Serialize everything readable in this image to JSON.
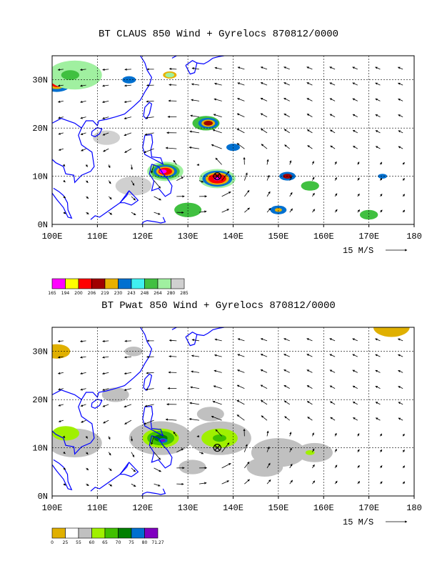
{
  "panels": [
    {
      "title": "BT CLAUS 850 Wind + Gyrelocs 870812/0000",
      "field": "CLAUS brightness temperature",
      "x_ticks": [
        "100E",
        "110E",
        "120E",
        "130E",
        "140E",
        "150E",
        "160E",
        "170E",
        "180"
      ],
      "y_ticks": [
        "30N",
        "20N",
        "10N",
        "0N"
      ],
      "vector_ref": "15 M/S",
      "legend": [
        "165",
        "194",
        "200",
        "206",
        "219",
        "230",
        "243",
        "248",
        "264",
        "280",
        "285"
      ],
      "legend_colors": [
        "#ff00ff",
        "#ffff00",
        "#ff0000",
        "#a00000",
        "#e8b000",
        "#0070d0",
        "#40f0f0",
        "#40c040",
        "#a0f0a0",
        "#d0d0d0"
      ]
    },
    {
      "title": "BT Pwat 850 Wind + Gyrelocs 870812/0000",
      "field": "Precipitable water",
      "x_ticks": [
        "100E",
        "110E",
        "120E",
        "130E",
        "140E",
        "150E",
        "160E",
        "170E",
        "180"
      ],
      "y_ticks": [
        "30N",
        "20N",
        "10N",
        "0N"
      ],
      "vector_ref": "15 M/S",
      "legend": [
        "0",
        "25",
        "55",
        "60",
        "65",
        "70",
        "75",
        "80",
        "71.27"
      ],
      "legend_colors": [
        "#e0b000",
        "#ffffff",
        "#c0c0c0",
        "#a0f000",
        "#40c000",
        "#008000",
        "#0070d0",
        "#8000c0"
      ]
    }
  ],
  "gyreloc": {
    "lon": 136.5,
    "lat": 10
  }
}
